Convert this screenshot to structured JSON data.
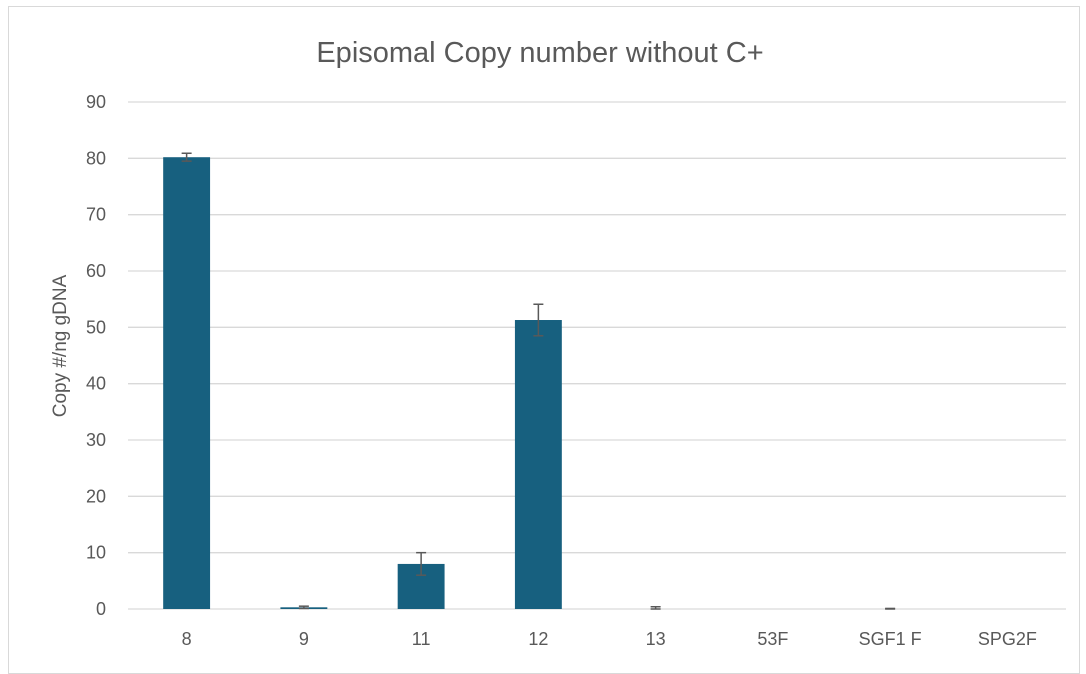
{
  "chart_data": {
    "type": "bar",
    "title": "Episomal Copy number without C+",
    "xlabel": "",
    "ylabel": "Copy #/ng gDNA",
    "ylim": [
      0,
      90
    ],
    "yticks": [
      0,
      10,
      20,
      30,
      40,
      50,
      60,
      70,
      80,
      90
    ],
    "categories": [
      "8",
      "9",
      "11",
      "12",
      "13",
      "53F",
      "SGF1 F",
      "SPG2F"
    ],
    "values": [
      80.2,
      0.3,
      8.0,
      51.3,
      0.0,
      0.0,
      0.0,
      0.0
    ],
    "errors": [
      0.7,
      0.2,
      2.0,
      2.8,
      0.4,
      0.0,
      0.1,
      0.0
    ],
    "grid": true,
    "legend": "none",
    "colors": {
      "bar": "#17607f",
      "grid": "#d9d9d9",
      "error": "#595959",
      "text": "#595959"
    }
  }
}
